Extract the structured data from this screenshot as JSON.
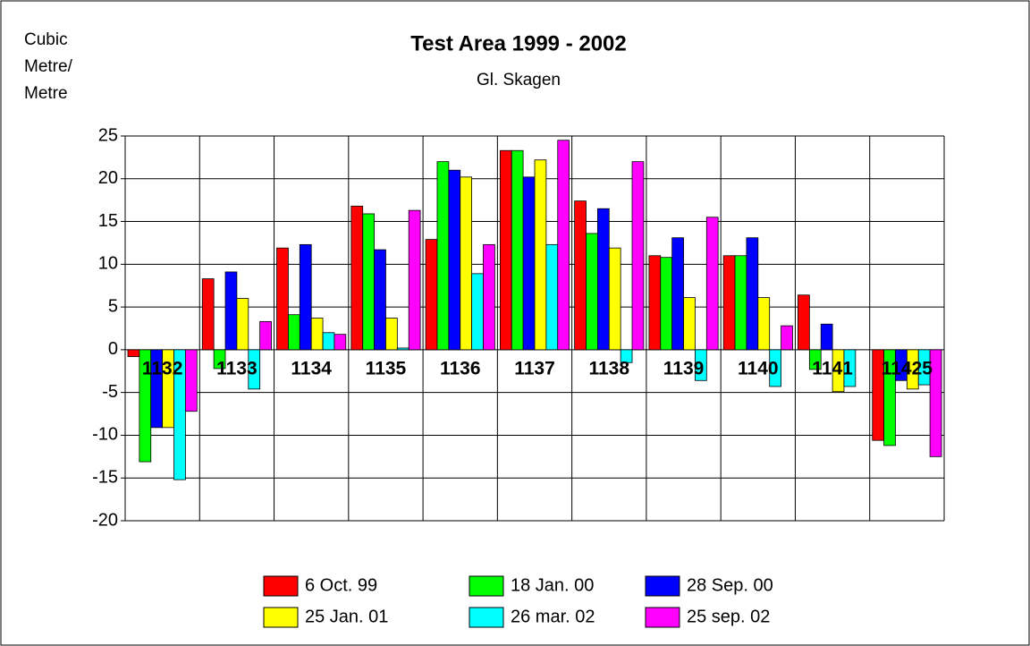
{
  "chart_data": {
    "type": "bar",
    "title": "Test Area 1999 - 2002",
    "subtitle": "Gl. Skagen",
    "y_label": [
      "Cubic",
      "Metre/",
      "Metre"
    ],
    "categories": [
      "1132",
      "1133",
      "1134",
      "1135",
      "1136",
      "1137",
      "1138",
      "1139",
      "1140",
      "1141",
      "11425"
    ],
    "series": [
      {
        "name": "6 Oct. 99",
        "color": "#ff0000",
        "values": [
          -0.8,
          8.3,
          11.9,
          16.8,
          12.9,
          23.3,
          17.4,
          11.0,
          11.0,
          6.4,
          -10.6
        ]
      },
      {
        "name": "18 Jan. 00",
        "color": "#00ff00",
        "values": [
          -13.1,
          -2.2,
          4.1,
          15.9,
          22.0,
          23.3,
          13.6,
          10.8,
          11.0,
          -2.3,
          -11.2
        ]
      },
      {
        "name": "28 Sep. 00",
        "color": "#0000ff",
        "values": [
          -9.1,
          9.1,
          12.3,
          11.7,
          21.0,
          20.2,
          16.5,
          13.1,
          13.1,
          3.0,
          -3.6
        ]
      },
      {
        "name": "25 Jan. 01",
        "color": "#ffff00",
        "values": [
          -9.1,
          6.0,
          3.7,
          3.7,
          20.2,
          22.2,
          11.9,
          6.1,
          6.1,
          -4.9,
          -4.6
        ]
      },
      {
        "name": "26 mar. 02",
        "color": "#00ffff",
        "values": [
          -15.2,
          -4.6,
          2.0,
          0.2,
          8.9,
          12.3,
          -1.5,
          -3.6,
          -4.3,
          -4.3,
          -4.1
        ]
      },
      {
        "name": "25 sep. 02",
        "color": "#ff00ff",
        "values": [
          -7.2,
          3.3,
          1.8,
          16.3,
          12.3,
          24.5,
          22.0,
          15.5,
          2.8,
          null,
          -12.5
        ]
      }
    ],
    "ylim": [
      -20,
      25
    ],
    "yticks": [
      -20,
      -15,
      -10,
      -5,
      0,
      5,
      10,
      15,
      20,
      25
    ],
    "grid": true
  }
}
